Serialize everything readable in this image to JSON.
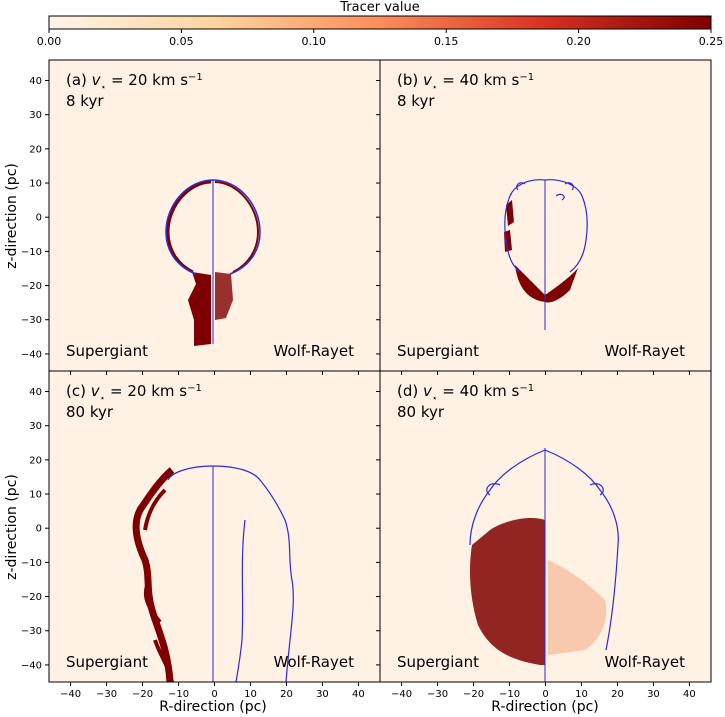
{
  "colorbar": {
    "title": "Tracer value",
    "ticks": [
      "0.00",
      "0.05",
      "0.10",
      "0.15",
      "0.20",
      "0.25"
    ],
    "range": [
      0,
      0.25
    ],
    "colors": [
      "#fff5e9",
      "#fdd49e",
      "#fc8d59",
      "#d7301f",
      "#7f0000"
    ]
  },
  "background_color": "#fff1e3",
  "contour_color": "#2b2bd9",
  "tracer_dark": "#7f0000",
  "panels": [
    {
      "id": "a",
      "label_prefix": "(a) ",
      "label_var": "v",
      "label_eq": " = 20 km s",
      "label_exp": "−1",
      "time": "8 kyr",
      "left_label": "Supergiant",
      "right_label": "Wolf-Rayet"
    },
    {
      "id": "b",
      "label_prefix": "(b) ",
      "label_var": "v",
      "label_eq": " = 40 km s",
      "label_exp": "−1",
      "time": "8 kyr",
      "left_label": "Supergiant",
      "right_label": "Wolf-Rayet"
    },
    {
      "id": "c",
      "label_prefix": "(c) ",
      "label_var": "v",
      "label_eq": " = 20 km s",
      "label_exp": "−1",
      "time": "80 kyr",
      "left_label": "Supergiant",
      "right_label": "Wolf-Rayet"
    },
    {
      "id": "d",
      "label_prefix": "(d) ",
      "label_var": "v",
      "label_eq": " = 40 km s",
      "label_exp": "−1",
      "time": "80 kyr",
      "left_label": "Supergiant",
      "right_label": "Wolf-Rayet"
    }
  ],
  "chart_data": {
    "type": "heatmap",
    "title": "",
    "xlabel": "R-direction (pc)",
    "ylabel": "z-direction (pc)",
    "xlim": [
      -46,
      46
    ],
    "ylim": [
      -45,
      46
    ],
    "xticks": [
      -40,
      -30,
      -20,
      -10,
      0,
      10,
      20,
      30,
      40
    ],
    "yticks": [
      40,
      30,
      20,
      10,
      0,
      -10,
      -20,
      -30,
      -40
    ],
    "xtick_labels": [
      "−40",
      "−30",
      "−20",
      "−10",
      "0",
      "10",
      "20",
      "30",
      "40"
    ],
    "ytick_labels": [
      "40",
      "30",
      "20",
      "10",
      "0",
      "−10",
      "−20",
      "−30",
      "−40"
    ],
    "colorbar_label": "Tracer value",
    "colorbar_range": [
      0,
      0.25
    ]
  }
}
